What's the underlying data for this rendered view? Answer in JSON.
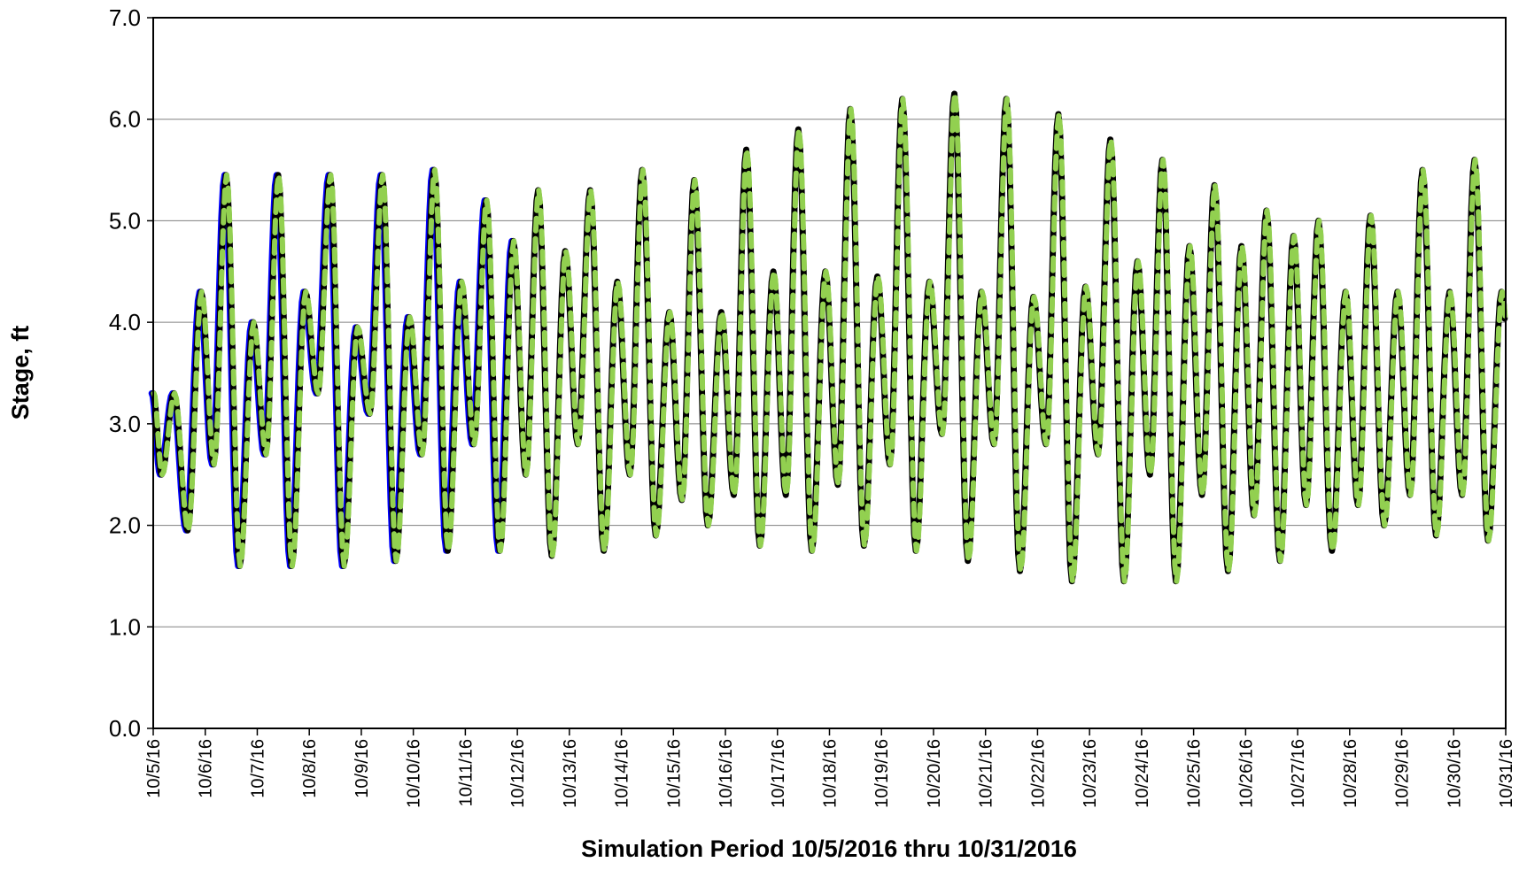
{
  "chart_data": {
    "type": "line",
    "title": "",
    "xlabel": "Simulation Period 10/5/2016 thru 10/31/2016",
    "ylabel": "Stage, ft",
    "ylim": [
      0,
      7
    ],
    "yticks": [
      "0.0",
      "1.0",
      "2.0",
      "3.0",
      "4.0",
      "5.0",
      "6.0",
      "7.0"
    ],
    "xlim": [
      "10/5/16",
      "10/31/16"
    ],
    "xticks": [
      "10/5/16",
      "10/6/16",
      "10/7/16",
      "10/8/16",
      "10/9/16",
      "10/10/16",
      "10/11/16",
      "10/12/16",
      "10/13/16",
      "10/14/16",
      "10/15/16",
      "10/16/16",
      "10/17/16",
      "10/18/16",
      "10/19/16",
      "10/20/16",
      "10/21/16",
      "10/22/16",
      "10/23/16",
      "10/24/16",
      "10/25/16",
      "10/26/16",
      "10/27/16",
      "10/28/16",
      "10/29/16",
      "10/30/16",
      "10/31/16"
    ],
    "grid": "horizontal",
    "legend": "none",
    "series_style": [
      {
        "color": "#0000ff",
        "style": "solid"
      },
      {
        "color": "#000000",
        "style": "solid"
      },
      {
        "color": "#92d050",
        "style": "dashed"
      }
    ],
    "series_extent": [
      {
        "start": "10/5/16",
        "end": "10/12/16"
      },
      {
        "start": "10/5/16",
        "end": "10/31/16"
      },
      {
        "start": "10/5/16",
        "end": "10/31/16"
      }
    ],
    "daily_extremes": {
      "dates": [
        "10/5/16",
        "10/6/16",
        "10/7/16",
        "10/8/16",
        "10/9/16",
        "10/10/16",
        "10/11/16",
        "10/12/16",
        "10/13/16",
        "10/14/16",
        "10/15/16",
        "10/16/16",
        "10/17/16",
        "10/18/16",
        "10/19/16",
        "10/20/16",
        "10/21/16",
        "10/22/16",
        "10/23/16",
        "10/24/16",
        "10/25/16",
        "10/26/16",
        "10/27/16",
        "10/28/16",
        "10/29/16",
        "10/30/16",
        "10/31/16"
      ],
      "higher_high": [
        3.3,
        5.45,
        5.45,
        5.45,
        5.45,
        5.5,
        5.2,
        5.3,
        5.3,
        5.5,
        5.4,
        5.7,
        5.9,
        6.1,
        6.2,
        6.25,
        6.2,
        6.05,
        5.8,
        5.6,
        5.35,
        5.1,
        5.0,
        5.05,
        5.5,
        5.6,
        5.7
      ],
      "lower_high": [
        4.3,
        4.0,
        4.3,
        3.95,
        4.05,
        4.4,
        4.8,
        4.7,
        4.4,
        4.1,
        4.1,
        4.5,
        4.5,
        4.45,
        4.4,
        4.3,
        4.25,
        4.35,
        4.6,
        4.75,
        4.75,
        4.85,
        4.3,
        4.3,
        4.3,
        4.3,
        4.3
      ],
      "lower_low": [
        1.95,
        1.6,
        1.6,
        1.6,
        1.65,
        1.75,
        1.75,
        1.7,
        1.75,
        1.9,
        2.0,
        1.8,
        1.75,
        1.8,
        1.75,
        1.65,
        1.55,
        1.45,
        1.45,
        1.45,
        1.55,
        1.65,
        1.75,
        2.0,
        1.9,
        1.85,
        1.75
      ],
      "higher_low": [
        2.5,
        2.6,
        2.7,
        3.3,
        3.1,
        2.7,
        2.8,
        2.5,
        2.8,
        2.5,
        2.25,
        2.3,
        2.3,
        2.4,
        2.6,
        2.9,
        2.8,
        2.8,
        2.7,
        2.5,
        2.3,
        2.1,
        2.2,
        2.2,
        2.3,
        2.3,
        2.5
      ]
    }
  }
}
